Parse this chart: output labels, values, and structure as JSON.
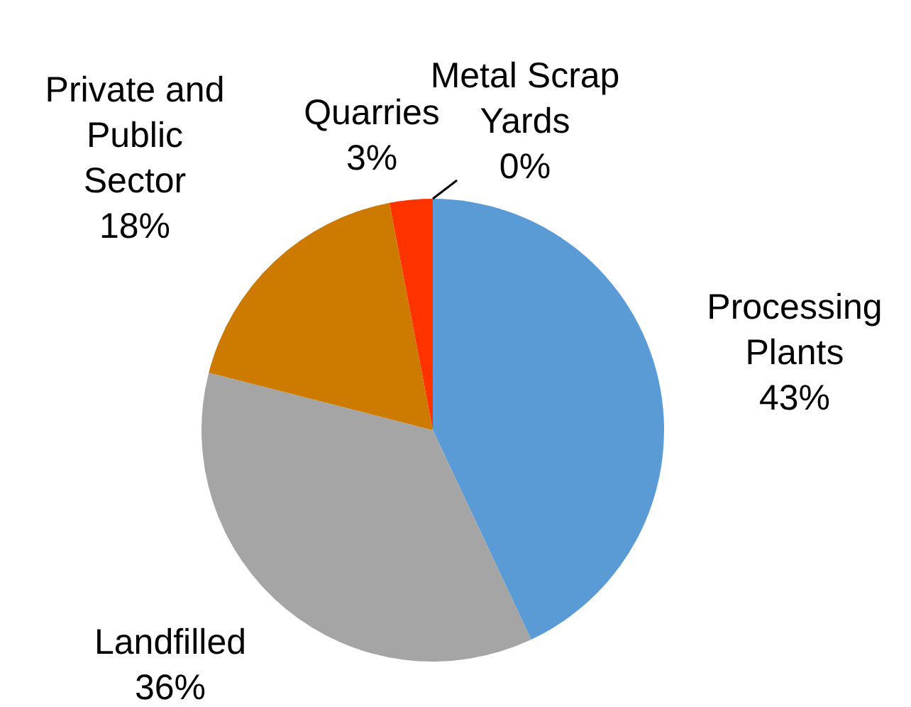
{
  "chart_data": {
    "type": "pie",
    "categories": [
      "Processing Plants",
      "Landfilled",
      "Private and Public Sector",
      "Quarries",
      "Metal Scrap Yards"
    ],
    "values": [
      43,
      36,
      18,
      3,
      0
    ],
    "value_labels": [
      "43%",
      "36%",
      "18%",
      "3%",
      "0%"
    ],
    "colors": [
      "#5b9bd5",
      "#a5a5a5",
      "#cc7a00",
      "#ff3300",
      "#ffc000"
    ]
  }
}
